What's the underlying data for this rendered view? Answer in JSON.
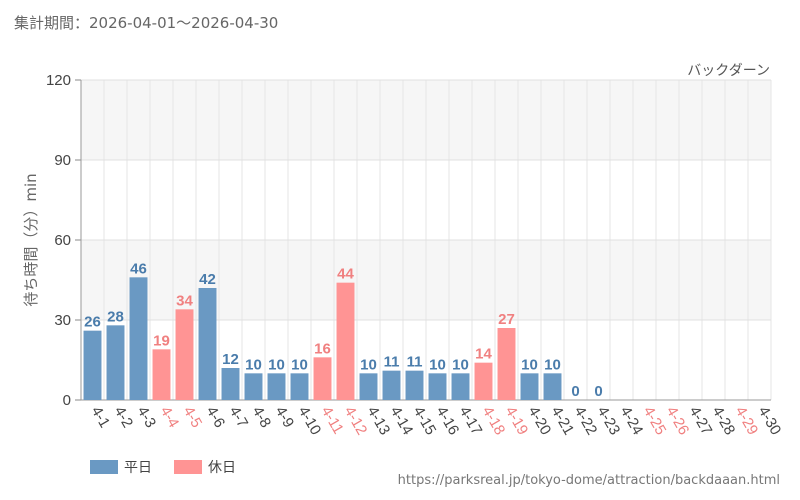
{
  "header": {
    "period_label": "集計期間：2026-04-01～2026-04-30"
  },
  "footer": {
    "source_url": "https://parksreal.jp/tokyo-dome/attraction/backdaaan.html"
  },
  "colors": {
    "weekday": "#6a99c3",
    "holiday": "#ff9494",
    "weekday_label": "#4a7cab",
    "holiday_label": "#f08080"
  },
  "legend": [
    {
      "key": "weekday",
      "label": "平日"
    },
    {
      "key": "holiday",
      "label": "休日"
    }
  ],
  "chart_data": {
    "type": "bar",
    "title": "バックダーン",
    "ylabel": "待ち時間（分）min",
    "xlabel": "",
    "ylim": [
      0,
      120
    ],
    "yticks": [
      0,
      30,
      60,
      90,
      120
    ],
    "grid": true,
    "categories": [
      "4-1",
      "4-2",
      "4-3",
      "4-4",
      "4-5",
      "4-6",
      "4-7",
      "4-8",
      "4-9",
      "4-10",
      "4-11",
      "4-12",
      "4-13",
      "4-14",
      "4-15",
      "4-16",
      "4-17",
      "4-18",
      "4-19",
      "4-20",
      "4-21",
      "4-22",
      "4-23",
      "4-24",
      "4-25",
      "4-26",
      "4-27",
      "4-28",
      "4-29",
      "4-30"
    ],
    "values": [
      26,
      28,
      46,
      19,
      34,
      42,
      12,
      10,
      10,
      10,
      16,
      44,
      10,
      11,
      11,
      10,
      10,
      14,
      27,
      10,
      10,
      0,
      0,
      null,
      null,
      null,
      null,
      null,
      null,
      null
    ],
    "day_type": [
      "weekday",
      "weekday",
      "weekday",
      "holiday",
      "holiday",
      "weekday",
      "weekday",
      "weekday",
      "weekday",
      "weekday",
      "holiday",
      "holiday",
      "weekday",
      "weekday",
      "weekday",
      "weekday",
      "weekday",
      "holiday",
      "holiday",
      "weekday",
      "weekday",
      "weekday",
      "weekday",
      "weekday",
      "holiday",
      "holiday",
      "weekday",
      "weekday",
      "holiday",
      "weekday"
    ],
    "legend_position": "bottom-left"
  }
}
